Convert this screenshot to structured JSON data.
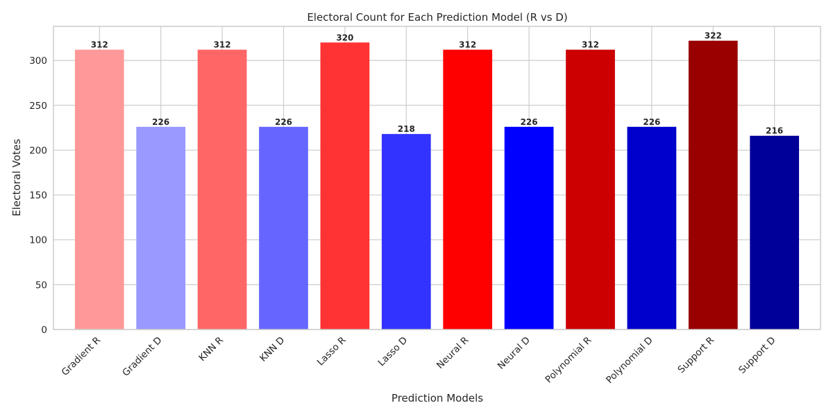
{
  "chart_data": {
    "type": "bar",
    "title": "Electoral Count for Each Prediction Model (R vs D)",
    "xlabel": "Prediction Models",
    "ylabel": "Electoral Votes",
    "ylim": [
      0,
      338
    ],
    "yticks": [
      0,
      50,
      100,
      150,
      200,
      250,
      300
    ],
    "grid": true,
    "categories": [
      "Gradient R",
      "Gradient D",
      "KNN R",
      "KNN D",
      "Lasso R",
      "Lasso D",
      "Neural R",
      "Neural D",
      "Polynomial R",
      "Polynomial D",
      "Support R",
      "Support D"
    ],
    "values": [
      312,
      226,
      312,
      226,
      320,
      218,
      312,
      226,
      312,
      226,
      322,
      216
    ],
    "colors": [
      "#ff9999",
      "#9999ff",
      "#ff6666",
      "#6666ff",
      "#ff3333",
      "#3333ff",
      "#ff0000",
      "#0000ff",
      "#cc0000",
      "#0000cc",
      "#990000",
      "#000099"
    ],
    "colors_meaning": "",
    "grid_color": "#cccccc",
    "axes_edge_color": "#cccccc"
  }
}
